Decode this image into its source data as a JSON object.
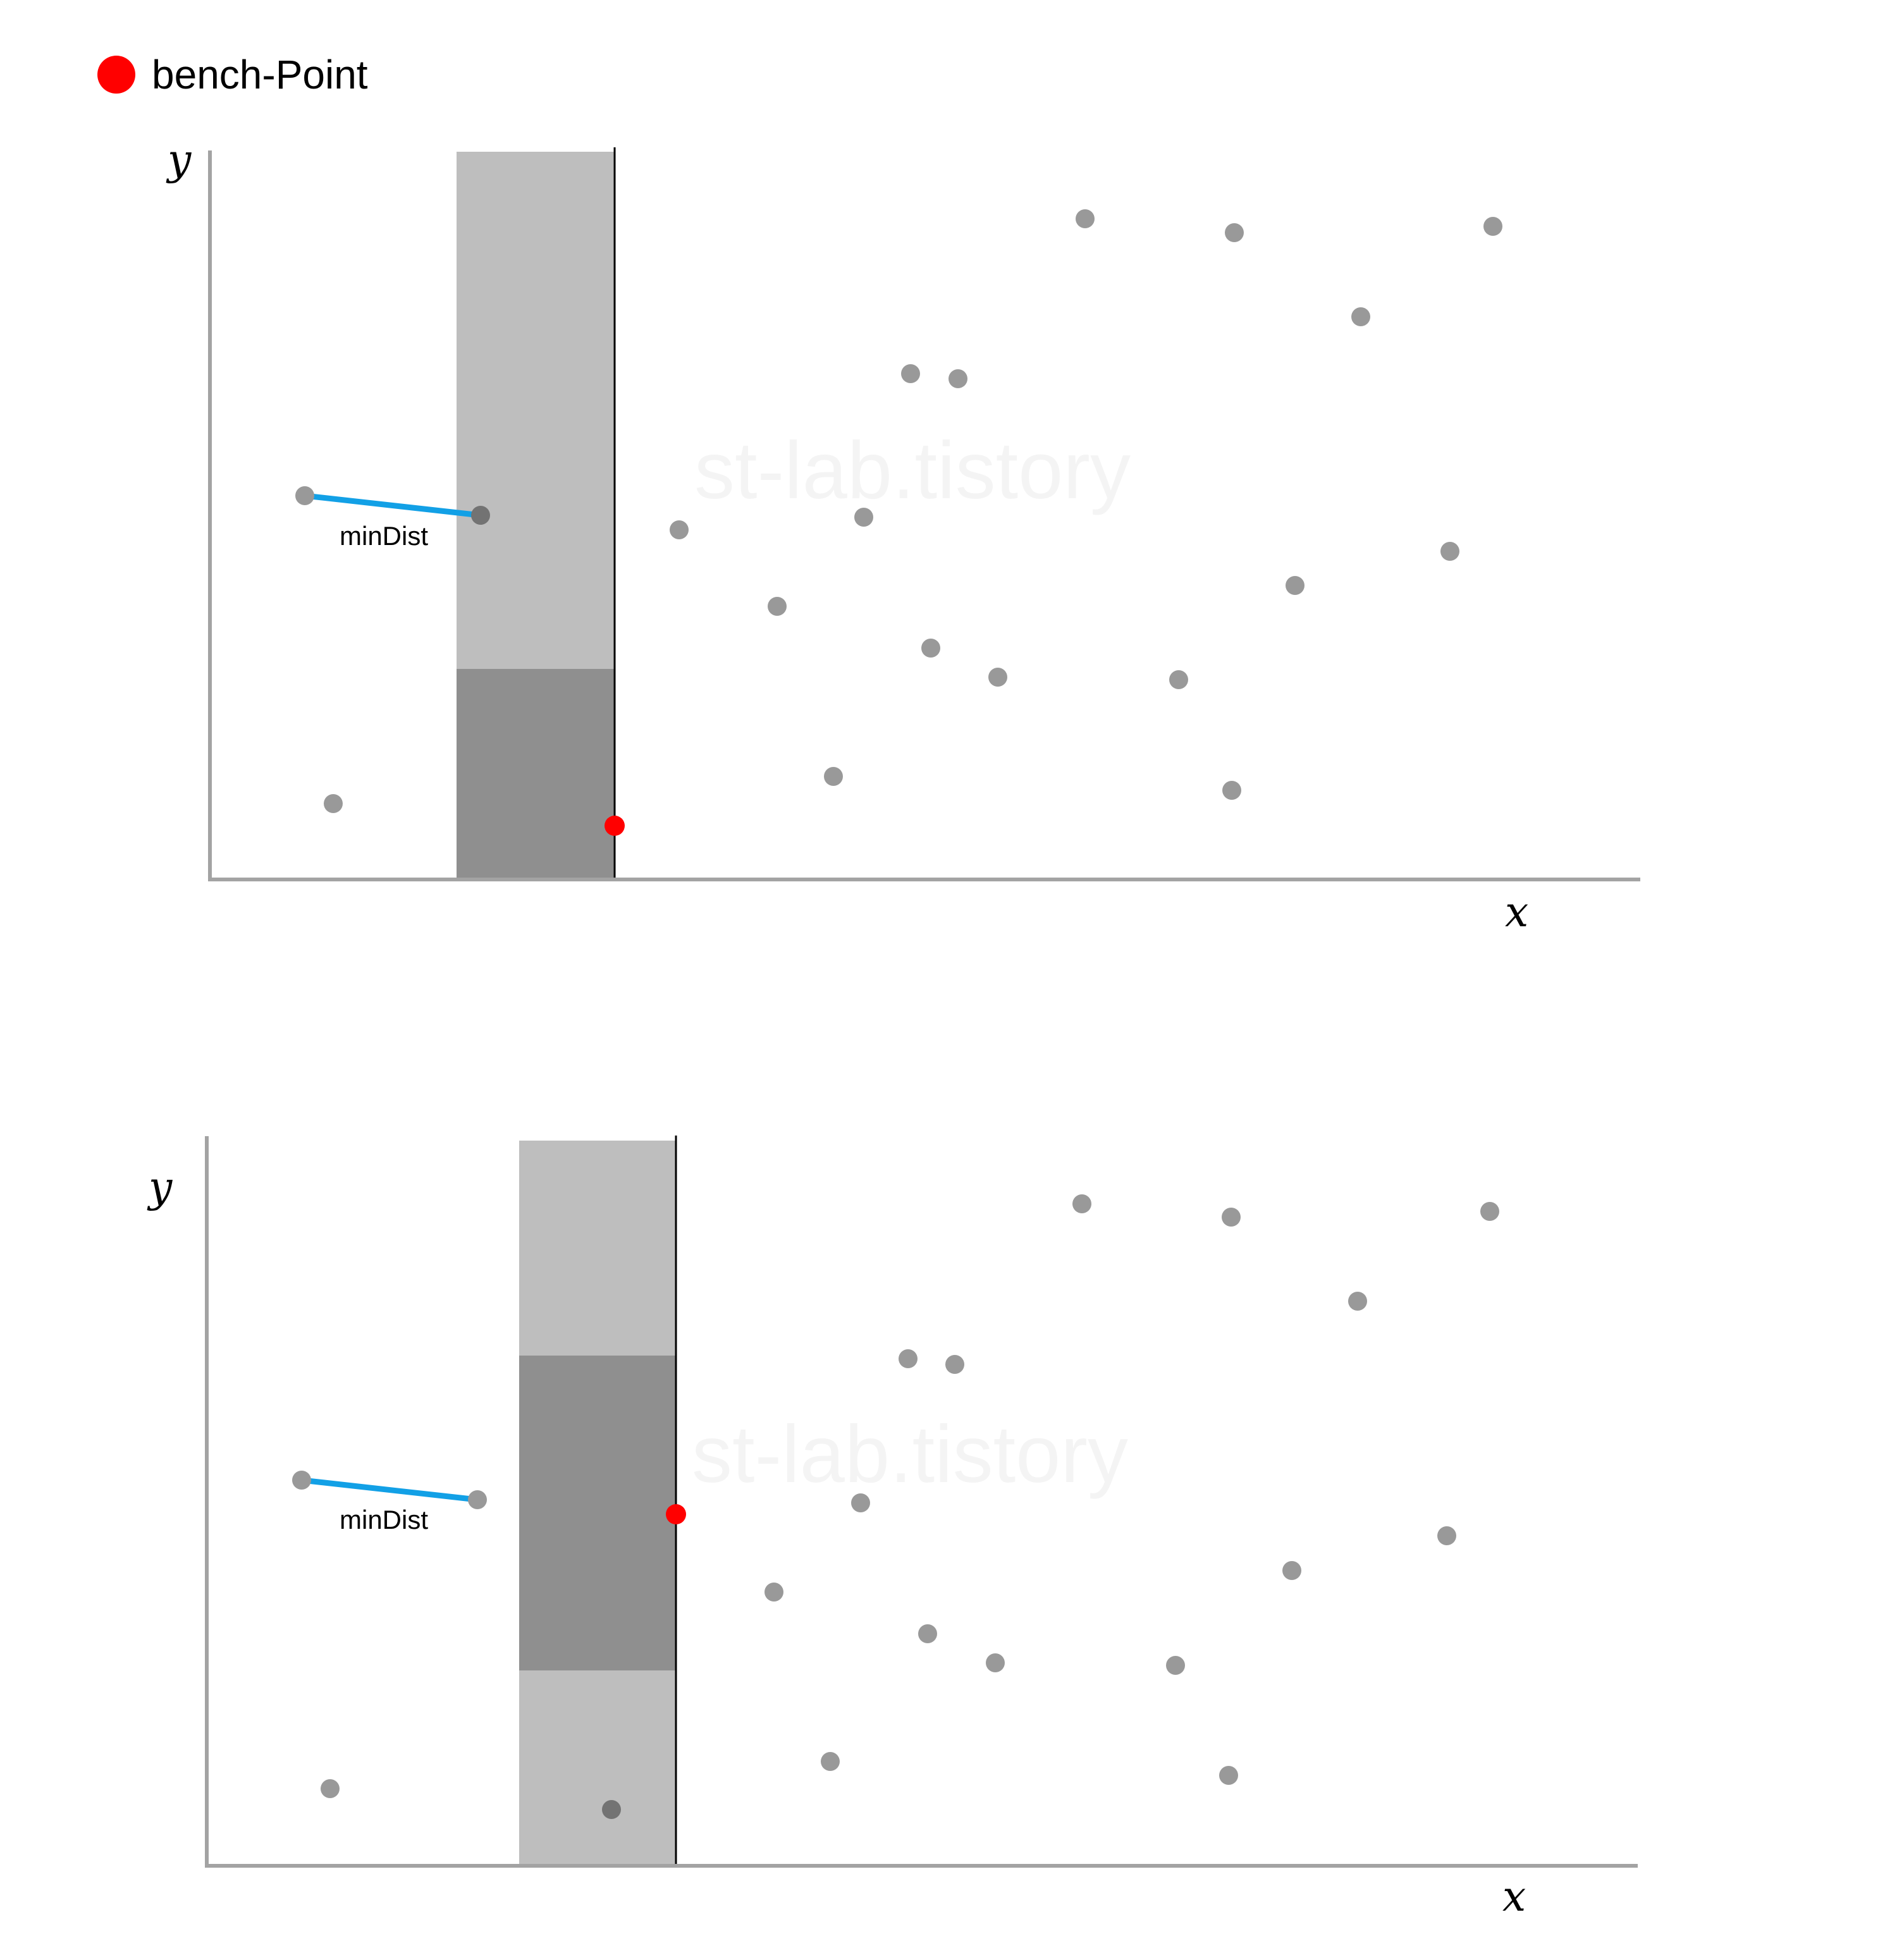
{
  "legend": {
    "label": "bench-Point",
    "marker_color": "#ff0000"
  },
  "watermark": "st-lab.tistory",
  "panels": [
    {
      "id": "top",
      "x_axis_label": "x",
      "y_axis_label": "y",
      "min_dist_label": "minDist"
    },
    {
      "id": "bottom",
      "x_axis_label": "x",
      "y_axis_label": "y",
      "min_dist_label": "minDist"
    }
  ],
  "colors": {
    "axis": "#a3a3a3",
    "point": "#999999",
    "point_in_window": "#737373",
    "strip_light": "#bebebe",
    "strip_dark": "#8f8f8f",
    "sweep_line": "#000000",
    "min_dist_line": "#12a0e6",
    "bench_point": "#ff0000"
  }
}
